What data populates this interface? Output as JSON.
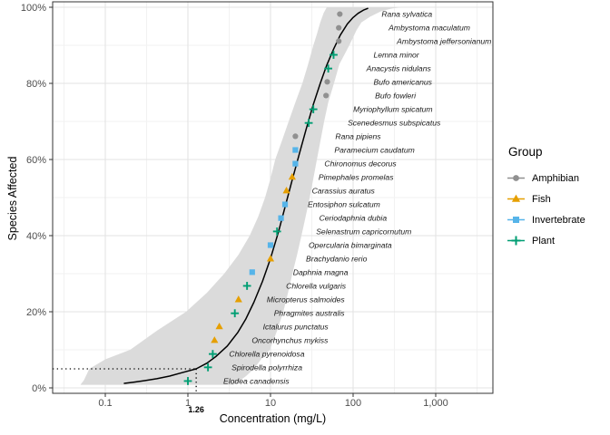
{
  "legend": {
    "title": "Group",
    "items": [
      {
        "label": "Amphibian",
        "group": "Amphibian",
        "shape": "circle"
      },
      {
        "label": "Fish",
        "group": "Fish",
        "shape": "triangle"
      },
      {
        "label": "Invertebrate",
        "group": "Invertebrate",
        "shape": "square"
      },
      {
        "label": "Plant",
        "group": "Plant",
        "shape": "plus"
      }
    ]
  },
  "chart_data": {
    "type": "scatter",
    "title": "",
    "xlabel": "Concentration (mg/L)",
    "ylabel": "Species Affected",
    "x_scale": "log10",
    "xlim": [
      0.02,
      5000
    ],
    "ylim": [
      0,
      100
    ],
    "grid": "on",
    "legend_position": "right",
    "x_ticks": [
      {
        "value": 0.1,
        "label": "0.1"
      },
      {
        "value": 1,
        "label": "1"
      },
      {
        "value": 10,
        "label": "10"
      },
      {
        "value": 100,
        "label": "100"
      },
      {
        "value": 1000,
        "label": "1,000"
      }
    ],
    "x_minor_ticks": [
      0.0316,
      0.316,
      3.16,
      31.6,
      316,
      3160
    ],
    "y_ticks": [
      {
        "value": 0,
        "label": "0%"
      },
      {
        "value": 20,
        "label": "20%"
      },
      {
        "value": 40,
        "label": "40%"
      },
      {
        "value": 60,
        "label": "60%"
      },
      {
        "value": 80,
        "label": "80%"
      },
      {
        "value": 100,
        "label": "100%"
      }
    ],
    "y_minor_ticks": [
      10,
      30,
      50,
      70,
      90
    ],
    "groups": {
      "Amphibian": {
        "color": "#909090",
        "marker": "circle"
      },
      "Fish": {
        "color": "#E69F00",
        "marker": "triangle"
      },
      "Invertebrate": {
        "color": "#56B4E9",
        "marker": "square"
      },
      "Plant": {
        "color": "#009E73",
        "marker": "plus"
      }
    },
    "hc5": {
      "conc": 1.26,
      "percent": 5,
      "label": "1.26"
    },
    "points": [
      {
        "species": "Elodea canadensis",
        "group": "Plant",
        "conc": 1.0,
        "percent": 1.8,
        "label_dx": 39
      },
      {
        "species": "Spirodella polyrrhiza",
        "group": "Plant",
        "conc": 1.75,
        "percent": 5.4,
        "label_dx": 26
      },
      {
        "species": "Chlorella pyrenoidosa",
        "group": "Plant",
        "conc": 2.0,
        "percent": 8.9,
        "label_dx": 18
      },
      {
        "species": "Oncorhynchus mykiss",
        "group": "Fish",
        "conc": 2.1,
        "percent": 12.5,
        "label_dx": 41
      },
      {
        "species": "Ictalurus punctatus",
        "group": "Fish",
        "conc": 2.4,
        "percent": 16.1,
        "label_dx": 48
      },
      {
        "species": "Phragmites australis",
        "group": "Plant",
        "conc": 3.7,
        "percent": 19.6,
        "label_dx": 43
      },
      {
        "species": "Micropterus salmoides",
        "group": "Fish",
        "conc": 4.1,
        "percent": 23.2,
        "label_dx": 31
      },
      {
        "species": "Chlorella vulgaris",
        "group": "Plant",
        "conc": 5.2,
        "percent": 26.8,
        "label_dx": 43
      },
      {
        "species": "Daphnia magna",
        "group": "Invertebrate",
        "conc": 6.0,
        "percent": 30.4,
        "label_dx": 45
      },
      {
        "species": "Brachydanio rerio",
        "group": "Fish",
        "conc": 10.0,
        "percent": 33.9,
        "label_dx": 39
      },
      {
        "species": "Opercularia bimarginata",
        "group": "Invertebrate",
        "conc": 10.0,
        "percent": 37.5,
        "label_dx": 42
      },
      {
        "species": "Selenastrum capricornutum",
        "group": "Plant",
        "conc": 12.0,
        "percent": 41.1,
        "label_dx": 43
      },
      {
        "species": "Ceriodaphnia dubia",
        "group": "Invertebrate",
        "conc": 13.4,
        "percent": 44.6,
        "label_dx": 42
      },
      {
        "species": "Entosiphon sulcatum",
        "group": "Invertebrate",
        "conc": 15.0,
        "percent": 48.2,
        "label_dx": 25
      },
      {
        "species": "Carassius auratus",
        "group": "Fish",
        "conc": 15.6,
        "percent": 51.8,
        "label_dx": 28
      },
      {
        "species": "Pimephales promelas",
        "group": "Fish",
        "conc": 18.3,
        "percent": 55.4,
        "label_dx": 29
      },
      {
        "species": "Chironomus decorus",
        "group": "Invertebrate",
        "conc": 20.0,
        "percent": 58.9,
        "label_dx": 32
      },
      {
        "species": "Paramecium caudatum",
        "group": "Invertebrate",
        "conc": 20.0,
        "percent": 62.5,
        "label_dx": 43
      },
      {
        "species": "Rana pipiens",
        "group": "Amphibian",
        "conc": 20.0,
        "percent": 66.1,
        "label_dx": 44
      },
      {
        "species": "Scenedesmus subspicatus",
        "group": "Plant",
        "conc": 29.0,
        "percent": 69.6,
        "label_dx": 43
      },
      {
        "species": "Myriophyllum spicatum",
        "group": "Plant",
        "conc": 33.0,
        "percent": 73.2,
        "label_dx": 44
      },
      {
        "species": "Bufo fowleri",
        "group": "Amphibian",
        "conc": 47.0,
        "percent": 76.8,
        "label_dx": 54
      },
      {
        "species": "Bufo americanus",
        "group": "Amphibian",
        "conc": 48.6,
        "percent": 80.4,
        "label_dx": 51
      },
      {
        "species": "Anacystis nidulans",
        "group": "Plant",
        "conc": 50.0,
        "percent": 83.9,
        "label_dx": 42
      },
      {
        "species": "Lemna minor",
        "group": "Plant",
        "conc": 58.0,
        "percent": 87.5,
        "label_dx": 44
      },
      {
        "species": "Ambystoma jeffersonianum",
        "group": "Amphibian",
        "conc": 67.0,
        "percent": 91.1,
        "label_dx": 64
      },
      {
        "species": "Ambystoma maculatum",
        "group": "Amphibian",
        "conc": 67.0,
        "percent": 94.6,
        "label_dx": 55
      },
      {
        "species": "Rana sylvatica",
        "group": "Amphibian",
        "conc": 69.0,
        "percent": 98.2,
        "label_dx": 46
      }
    ],
    "fit_curve": [
      [
        0.17,
        1.2
      ],
      [
        0.22,
        1.5
      ],
      [
        0.3,
        1.9
      ],
      [
        0.42,
        2.4
      ],
      [
        0.6,
        3.1
      ],
      [
        0.85,
        4.0
      ],
      [
        1.26,
        5.0
      ],
      [
        1.7,
        6.5
      ],
      [
        2.2,
        8.3
      ],
      [
        3.0,
        11.0
      ],
      [
        4.0,
        14.5
      ],
      [
        5.0,
        18.0
      ],
      [
        6.3,
        22.5
      ],
      [
        8.0,
        28.0
      ],
      [
        10,
        34
      ],
      [
        12.5,
        41
      ],
      [
        15,
        47.5
      ],
      [
        18,
        54
      ],
      [
        22,
        61
      ],
      [
        27,
        68
      ],
      [
        33,
        74.5
      ],
      [
        40,
        80
      ],
      [
        48,
        84.8
      ],
      [
        58,
        89
      ],
      [
        70,
        92.7
      ],
      [
        85,
        95.6
      ],
      [
        100,
        97.3
      ],
      [
        115,
        98.4
      ],
      [
        135,
        99.3
      ],
      [
        150,
        99.7
      ]
    ],
    "ribbon": {
      "fill": "#DBDBDB",
      "lower": [
        [
          0.05,
          0.8
        ],
        [
          0.055,
          2
        ],
        [
          0.064,
          5
        ],
        [
          0.1,
          7.5
        ],
        [
          0.2,
          10
        ],
        [
          0.42,
          15
        ],
        [
          0.95,
          20
        ],
        [
          1.7,
          25
        ],
        [
          2.75,
          30
        ],
        [
          4.1,
          35
        ],
        [
          5.6,
          40
        ],
        [
          7.1,
          45
        ],
        [
          8.6,
          50
        ],
        [
          10,
          55
        ],
        [
          11.4,
          60
        ],
        [
          13.8,
          65
        ],
        [
          16.6,
          70
        ],
        [
          20,
          75
        ],
        [
          24.3,
          80
        ],
        [
          28.5,
          85
        ],
        [
          33,
          90
        ],
        [
          36.5,
          93
        ],
        [
          40,
          96
        ],
        [
          44,
          98.5
        ],
        [
          48,
          100
        ]
      ],
      "upper": [
        [
          3.6,
          0.8
        ],
        [
          5,
          3
        ],
        [
          6.3,
          5
        ],
        [
          8,
          8
        ],
        [
          9.8,
          10
        ],
        [
          12,
          15
        ],
        [
          14.3,
          20
        ],
        [
          16.3,
          25
        ],
        [
          18.4,
          30
        ],
        [
          21,
          35
        ],
        [
          23.7,
          40
        ],
        [
          26.6,
          45
        ],
        [
          29.8,
          50
        ],
        [
          33,
          55
        ],
        [
          36.4,
          60
        ],
        [
          40.3,
          65
        ],
        [
          44.6,
          70
        ],
        [
          50,
          75
        ],
        [
          58.7,
          80
        ],
        [
          68,
          85
        ],
        [
          90,
          90
        ],
        [
          110,
          94
        ],
        [
          126,
          96
        ],
        [
          160,
          97.5
        ],
        [
          220,
          99
        ],
        [
          300,
          99.7
        ],
        [
          390,
          100
        ]
      ]
    },
    "colors": {
      "curve": "#000000",
      "grid_major": "#E3E3E3",
      "grid_minor": "#F1F1F1",
      "panel_border": "#333333",
      "tick_label": "#4D4D4D",
      "species_label": "#1a1a1a",
      "hc_line": "#000000"
    }
  }
}
